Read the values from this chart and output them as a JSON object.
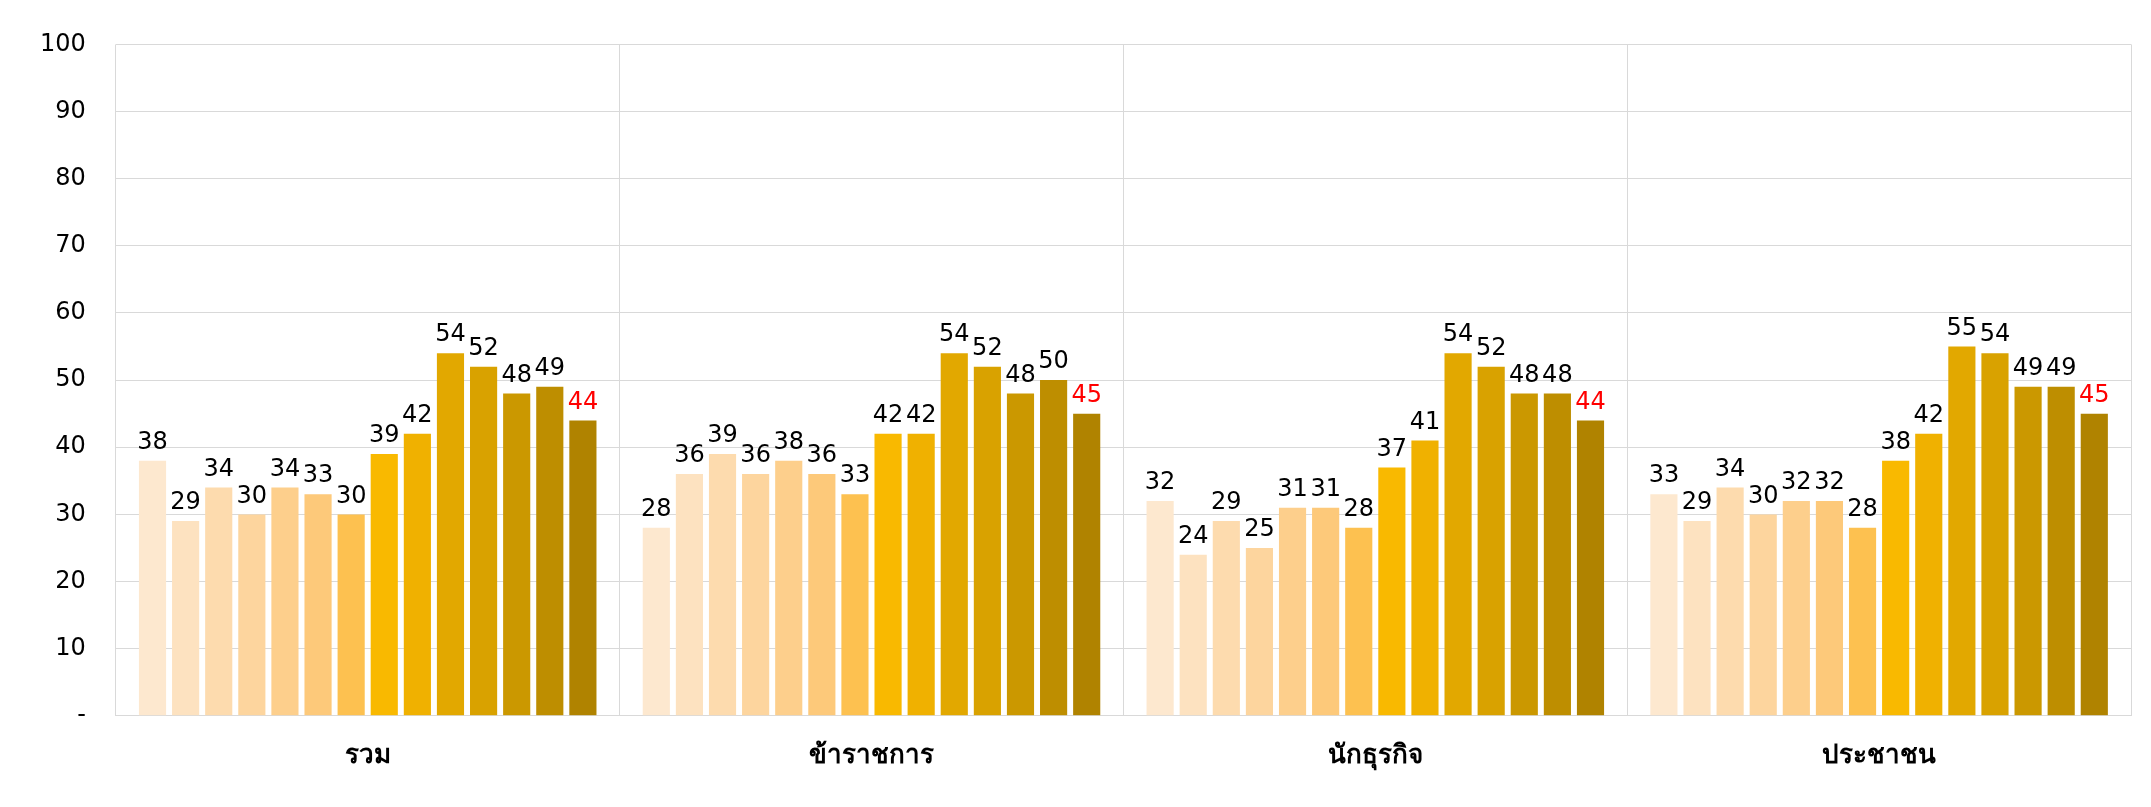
{
  "chart_data": {
    "type": "bar",
    "categories": [
      "รวม",
      "ข้าราชการ",
      "นักธุรกิจ",
      "ประชาชน"
    ],
    "series": [
      {
        "color": "#fde8cf",
        "values": [
          38,
          28,
          32,
          33
        ]
      },
      {
        "color": "#fde2c0",
        "values": [
          29,
          36,
          24,
          29
        ]
      },
      {
        "color": "#fddbae",
        "values": [
          34,
          39,
          29,
          34
        ]
      },
      {
        "color": "#fdd59e",
        "values": [
          30,
          36,
          25,
          30
        ]
      },
      {
        "color": "#fdcf8c",
        "values": [
          34,
          38,
          31,
          32
        ]
      },
      {
        "color": "#fdc97a",
        "values": [
          33,
          36,
          31,
          32
        ]
      },
      {
        "color": "#fdc150",
        "values": [
          30,
          33,
          28,
          28
        ]
      },
      {
        "color": "#f9b900",
        "values": [
          39,
          42,
          37,
          38
        ]
      },
      {
        "color": "#f0b100",
        "values": [
          42,
          42,
          41,
          42
        ]
      },
      {
        "color": "#e2a800",
        "values": [
          54,
          54,
          54,
          55
        ]
      },
      {
        "color": "#d9a200",
        "values": [
          52,
          52,
          52,
          54
        ]
      },
      {
        "color": "#cb9800",
        "values": [
          48,
          48,
          48,
          49
        ]
      },
      {
        "color": "#be8e00",
        "values": [
          49,
          50,
          48,
          49
        ]
      },
      {
        "color": "#b08300",
        "values": [
          44,
          45,
          44,
          45
        ]
      }
    ],
    "ylim": [
      0,
      100
    ],
    "yticks": [
      {
        "value": 0,
        "label": "-"
      },
      10,
      20,
      30,
      40,
      50,
      60,
      70,
      80,
      90,
      100
    ],
    "grid": true,
    "legend": false,
    "data_labels": true
  }
}
